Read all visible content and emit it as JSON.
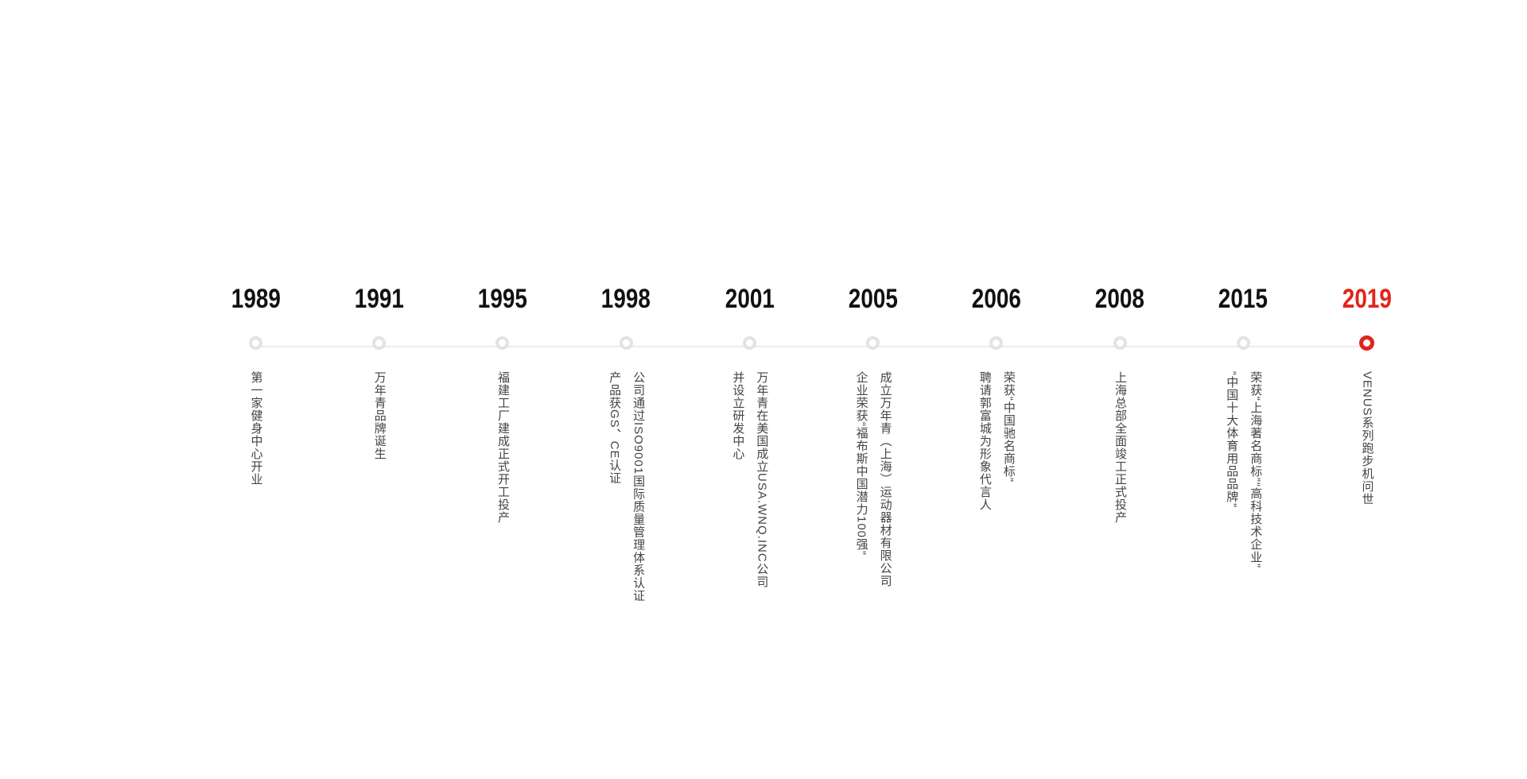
{
  "page": {
    "background_color": "#ffffff"
  },
  "timeline": {
    "accent_color": "#e2231a",
    "track_line_color": "#ececec",
    "marker_ring_color": "#e3e3e3",
    "year_text_color": "#111111",
    "description_text_color": "#444444",
    "items": [
      {
        "year": "1989",
        "highlight": false,
        "lines": [
          "第一家健身中心开业"
        ]
      },
      {
        "year": "1991",
        "highlight": false,
        "lines": [
          "万年青品牌诞生"
        ]
      },
      {
        "year": "1995",
        "highlight": false,
        "lines": [
          "福建工厂建成正式开工投产"
        ]
      },
      {
        "year": "1998",
        "highlight": false,
        "lines": [
          "公司通过ISO9001国际质量管理体系认证",
          "产品获GS、CE认证"
        ]
      },
      {
        "year": "2001",
        "highlight": false,
        "lines": [
          "万年青在美国成立USA.WNQ.INC公司",
          "并设立研发中心"
        ]
      },
      {
        "year": "2005",
        "highlight": false,
        "lines": [
          "成立万年青（上海）运动器材有限公司",
          "企业荣获“福布斯中国潜力100强”"
        ]
      },
      {
        "year": "2006",
        "highlight": false,
        "lines": [
          "荣获“中国驰名商标”",
          "聘请郭富城为形象代言人"
        ]
      },
      {
        "year": "2008",
        "highlight": false,
        "lines": [
          "上海总部全面竣工正式投产"
        ]
      },
      {
        "year": "2015",
        "highlight": false,
        "lines": [
          "荣获“上海著名商标”“高科技术企业”",
          "“中国十大体育用品品牌”"
        ]
      },
      {
        "year": "2019",
        "highlight": true,
        "lines": [
          "VENUS系列跑步机问世"
        ]
      }
    ]
  }
}
